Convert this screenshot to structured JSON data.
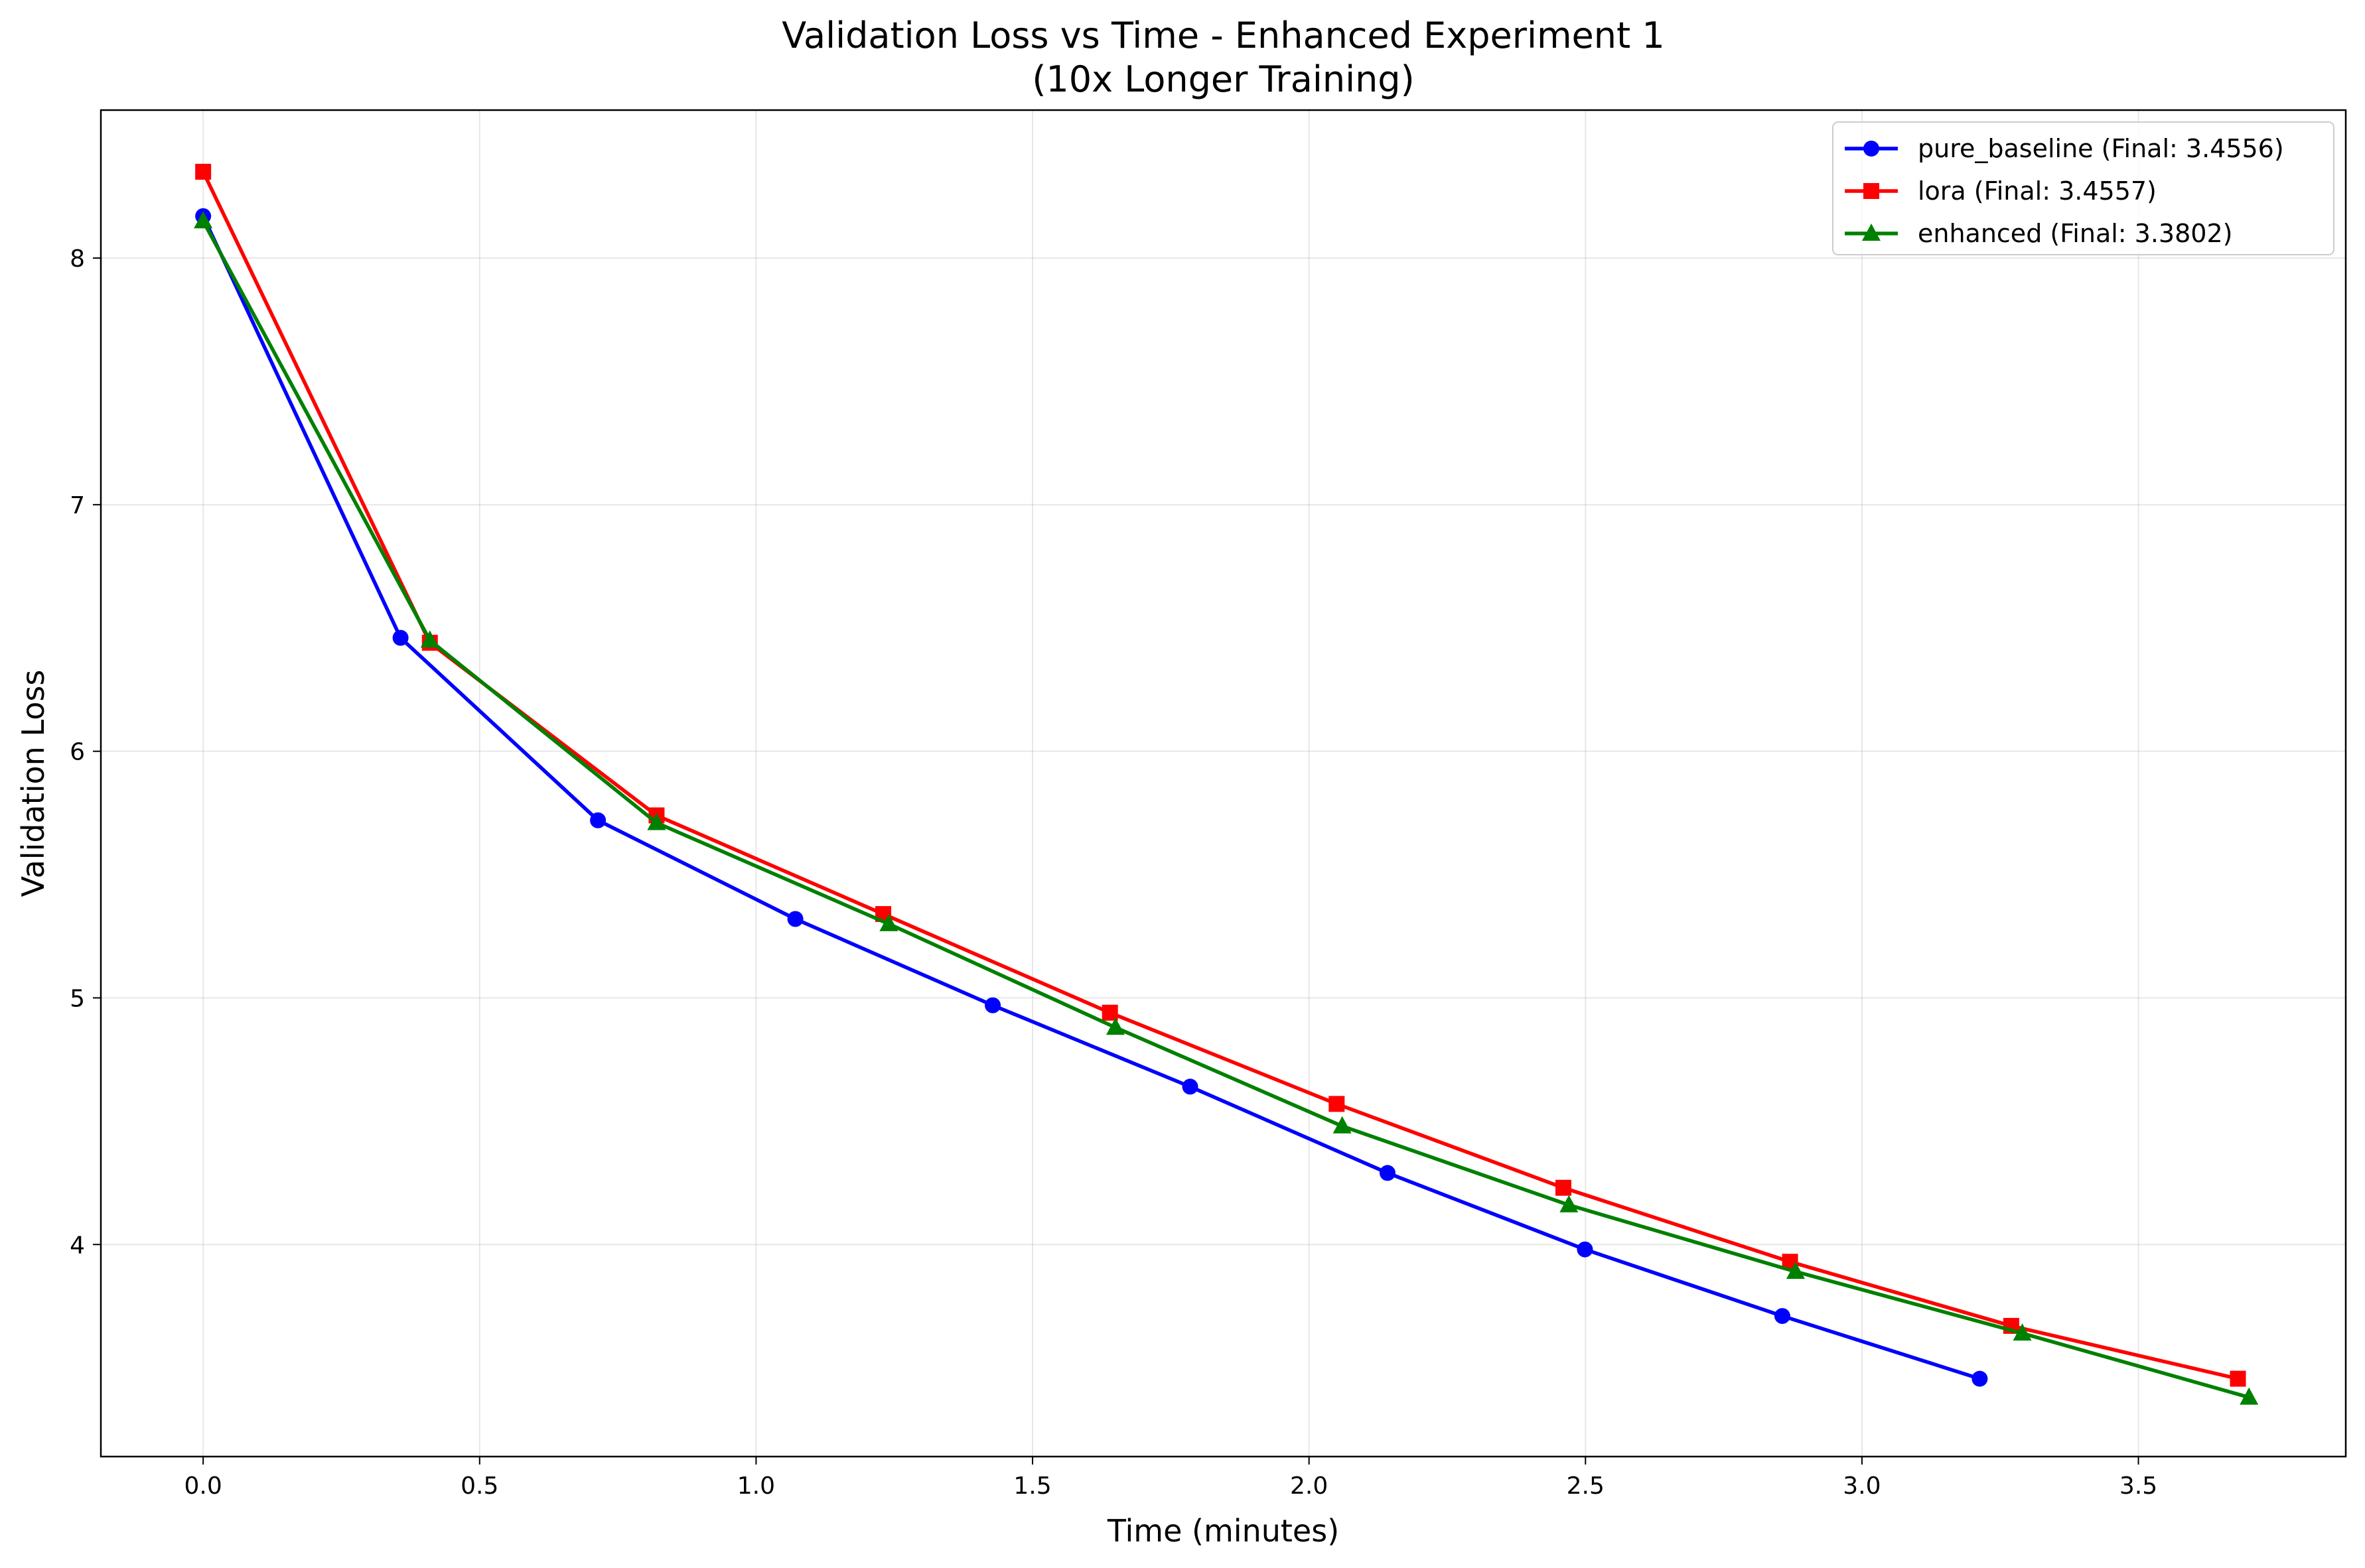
{
  "chart_data": {
    "type": "line",
    "title": "Validation Loss vs Time - Enhanced Experiment 1",
    "subtitle": "(10x Longer Training)",
    "xlabel": "Time (minutes)",
    "ylabel": "Validation Loss",
    "xlim": [
      -0.185,
      3.875
    ],
    "ylim": [
      3.14,
      8.6
    ],
    "xticks": [
      0.0,
      0.5,
      1.0,
      1.5,
      2.0,
      2.5,
      3.0,
      3.5
    ],
    "xtick_labels": [
      "0.0",
      "0.5",
      "1.0",
      "1.5",
      "2.0",
      "2.5",
      "3.0",
      "3.5"
    ],
    "yticks": [
      4,
      5,
      6,
      7,
      8
    ],
    "ytick_labels": [
      "4",
      "5",
      "6",
      "7",
      "8"
    ],
    "grid": true,
    "legend_position": "top-right",
    "series": [
      {
        "name": "pure_baseline (Final: 3.4556)",
        "color": "#0000ff",
        "marker": "circle",
        "x": [
          0.0,
          0.357,
          0.714,
          1.071,
          1.428,
          1.785,
          2.142,
          2.499,
          2.856,
          3.213
        ],
        "y": [
          8.17,
          6.46,
          5.72,
          5.32,
          4.97,
          4.64,
          4.29,
          3.98,
          3.71,
          3.4556
        ]
      },
      {
        "name": "lora (Final: 3.4557)",
        "color": "#ff0000",
        "marker": "square",
        "x": [
          0.0,
          0.41,
          0.82,
          1.23,
          1.64,
          2.05,
          2.46,
          2.87,
          3.27,
          3.68
        ],
        "y": [
          8.35,
          6.44,
          5.74,
          5.34,
          4.94,
          4.57,
          4.23,
          3.93,
          3.67,
          3.4557
        ]
      },
      {
        "name": "enhanced (Final: 3.3802)",
        "color": "#008000",
        "marker": "triangle",
        "x": [
          0.0,
          0.41,
          0.82,
          1.24,
          1.65,
          2.06,
          2.47,
          2.88,
          3.29,
          3.7
        ],
        "y": [
          8.15,
          6.45,
          5.71,
          5.3,
          4.88,
          4.48,
          4.16,
          3.89,
          3.64,
          3.3802
        ]
      }
    ]
  }
}
